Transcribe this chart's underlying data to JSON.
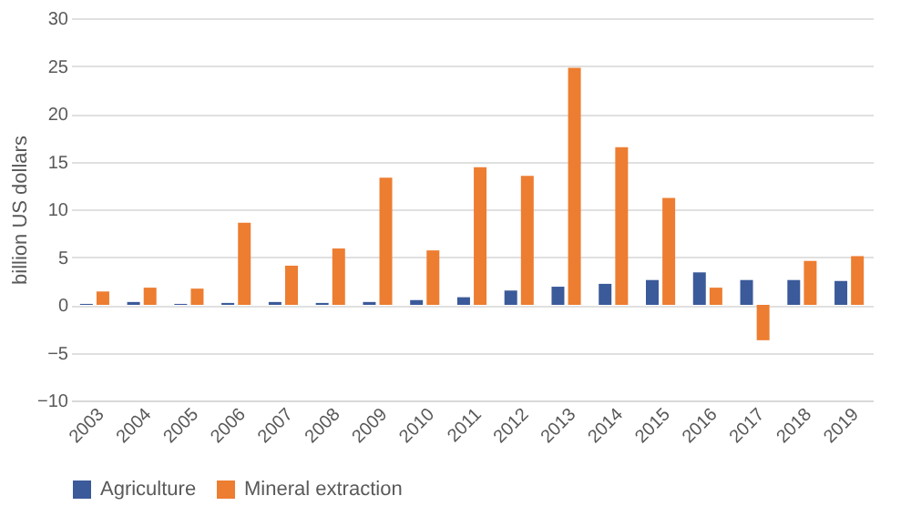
{
  "chart_data": {
    "type": "bar",
    "ylabel": "billion US dollars",
    "categories": [
      "2003",
      "2004",
      "2005",
      "2006",
      "2007",
      "2008",
      "2009",
      "2010",
      "2011",
      "2012",
      "2013",
      "2014",
      "2015",
      "2016",
      "2017",
      "2018",
      "2019"
    ],
    "series": [
      {
        "name": "Agriculture",
        "color": "#3b5a9a",
        "values": [
          0.1,
          0.3,
          0.1,
          0.2,
          0.3,
          0.2,
          0.3,
          0.5,
          0.8,
          1.5,
          1.9,
          2.2,
          2.6,
          3.4,
          2.6,
          2.6,
          2.5
        ]
      },
      {
        "name": "Mineral extraction",
        "color": "#ed7d31",
        "values": [
          1.4,
          1.8,
          1.7,
          8.6,
          4.1,
          5.9,
          13.3,
          5.7,
          14.4,
          13.5,
          24.8,
          16.5,
          11.2,
          1.8,
          -3.7,
          4.6,
          5.1
        ]
      }
    ],
    "ylim": [
      -10,
      30
    ],
    "yticks": [
      -10,
      -5,
      0,
      5,
      10,
      15,
      20,
      25,
      30
    ],
    "grid": "y",
    "legend": "bottom"
  }
}
